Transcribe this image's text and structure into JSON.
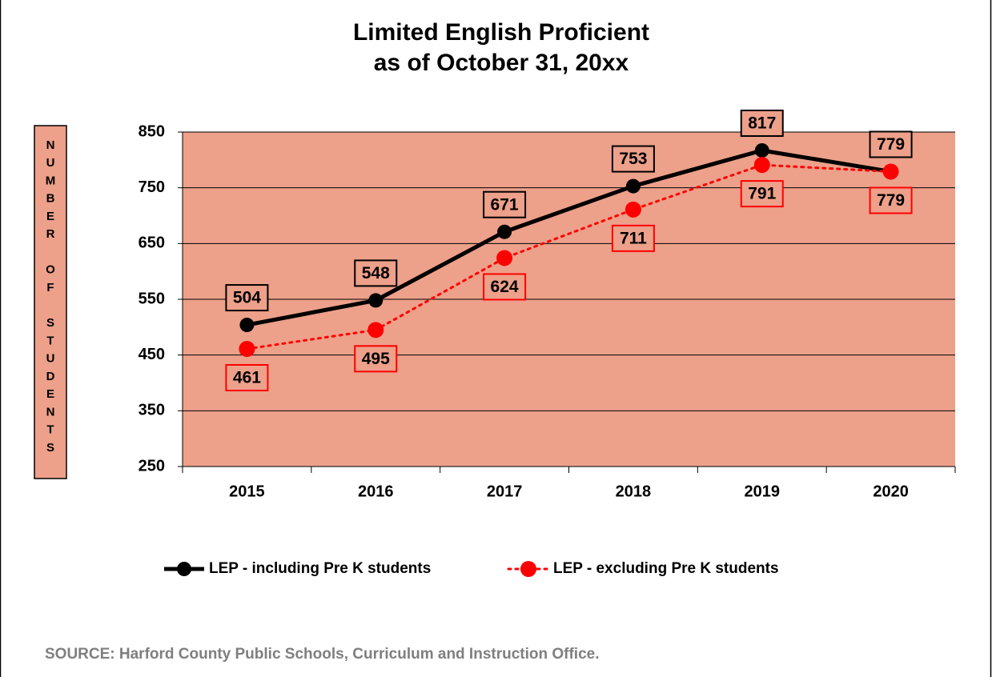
{
  "chart_data": {
    "type": "line",
    "title": "Limited English Proficient",
    "subtitle": "as of October 31, 20xx",
    "y_label": "NUMBER OF STUDENTS",
    "source": "SOURCE:  Harford County Public Schools, Curriculum and Instruction Office.",
    "categories": [
      "2015",
      "2016",
      "2017",
      "2018",
      "2019",
      "2020"
    ],
    "series": [
      {
        "name": "LEP - including Pre K students",
        "color": "#000000",
        "values": [
          504,
          548,
          671,
          753,
          817,
          779
        ]
      },
      {
        "name": "LEP - excluding Pre K students",
        "color": "#ff0000",
        "values": [
          461,
          495,
          624,
          711,
          791,
          779
        ]
      }
    ],
    "ylim": [
      250,
      850
    ],
    "yticks": [
      250,
      350,
      450,
      550,
      650,
      750,
      850
    ],
    "grid": true,
    "plot_background": "#eda08a",
    "legend": "bottom"
  }
}
